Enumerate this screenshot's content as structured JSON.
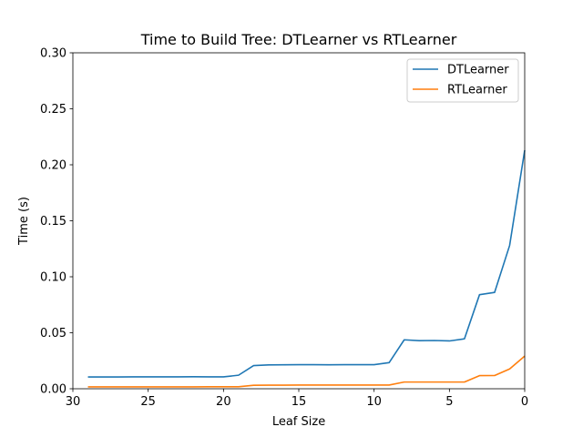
{
  "chart_data": {
    "type": "line",
    "title": "Time to Build Tree: DTLearner vs RTLearner",
    "xlabel": "Leaf Size",
    "ylabel": "Time (s)",
    "xlim": [
      30,
      0
    ],
    "x_inverted": true,
    "ylim": [
      0,
      0.3
    ],
    "xticks": [
      30,
      25,
      20,
      15,
      10,
      5,
      0
    ],
    "xtick_labels": [
      "30",
      "25",
      "20",
      "15",
      "10",
      "5",
      "0"
    ],
    "yticks": [
      0,
      0.05,
      0.1,
      0.15,
      0.2,
      0.25,
      0.3
    ],
    "ytick_labels": [
      "0.00",
      "0.05",
      "0.10",
      "0.15",
      "0.20",
      "0.25",
      "0.30"
    ],
    "grid": false,
    "legend_position": "top-right",
    "x": [
      29,
      28,
      27,
      26,
      25,
      24,
      23,
      22,
      21,
      20,
      19,
      18,
      17,
      16,
      15,
      14,
      13,
      12,
      11,
      10,
      9,
      8,
      7,
      6,
      5,
      4,
      3,
      2,
      1,
      0
    ],
    "series": [
      {
        "name": "DTLearner",
        "color": "#1f77b4",
        "values": [
          0.0105,
          0.0105,
          0.0105,
          0.0106,
          0.0106,
          0.0106,
          0.0106,
          0.0107,
          0.0106,
          0.0106,
          0.0121,
          0.0207,
          0.0213,
          0.0214,
          0.0215,
          0.0215,
          0.0214,
          0.0215,
          0.0215,
          0.0215,
          0.0233,
          0.0437,
          0.0429,
          0.0431,
          0.0427,
          0.0446,
          0.084,
          0.086,
          0.128,
          0.213
        ]
      },
      {
        "name": "RTLearner",
        "color": "#ff7f0e",
        "values": [
          0.0017,
          0.0017,
          0.0017,
          0.0017,
          0.0017,
          0.0017,
          0.0017,
          0.0017,
          0.0018,
          0.0018,
          0.0018,
          0.0031,
          0.0032,
          0.0032,
          0.0033,
          0.0033,
          0.0033,
          0.0033,
          0.0033,
          0.0033,
          0.0033,
          0.006,
          0.006,
          0.006,
          0.006,
          0.006,
          0.0117,
          0.0118,
          0.0177,
          0.0292
        ]
      }
    ]
  }
}
